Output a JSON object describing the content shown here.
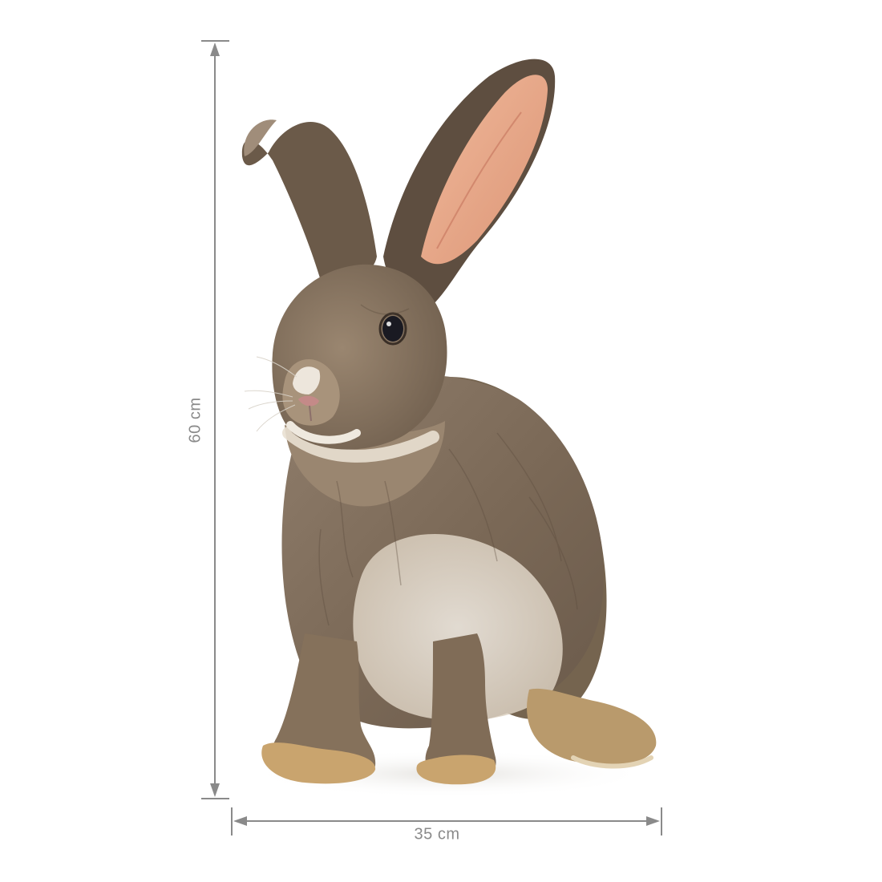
{
  "product": {
    "subject": "rabbit-wall-sticker"
  },
  "dimensions": {
    "height_label": "60 cm",
    "width_label": "35 cm",
    "line_color": "#8a8a8a"
  },
  "colors": {
    "background": "#ffffff",
    "fur_dark": "#5f5044",
    "fur_mid": "#8a7866",
    "fur_light": "#b9a891",
    "belly": "#ece6dc",
    "ear_inner": "#e8a98c",
    "paw": "#c9a46e",
    "eye": "#1a1a22"
  }
}
